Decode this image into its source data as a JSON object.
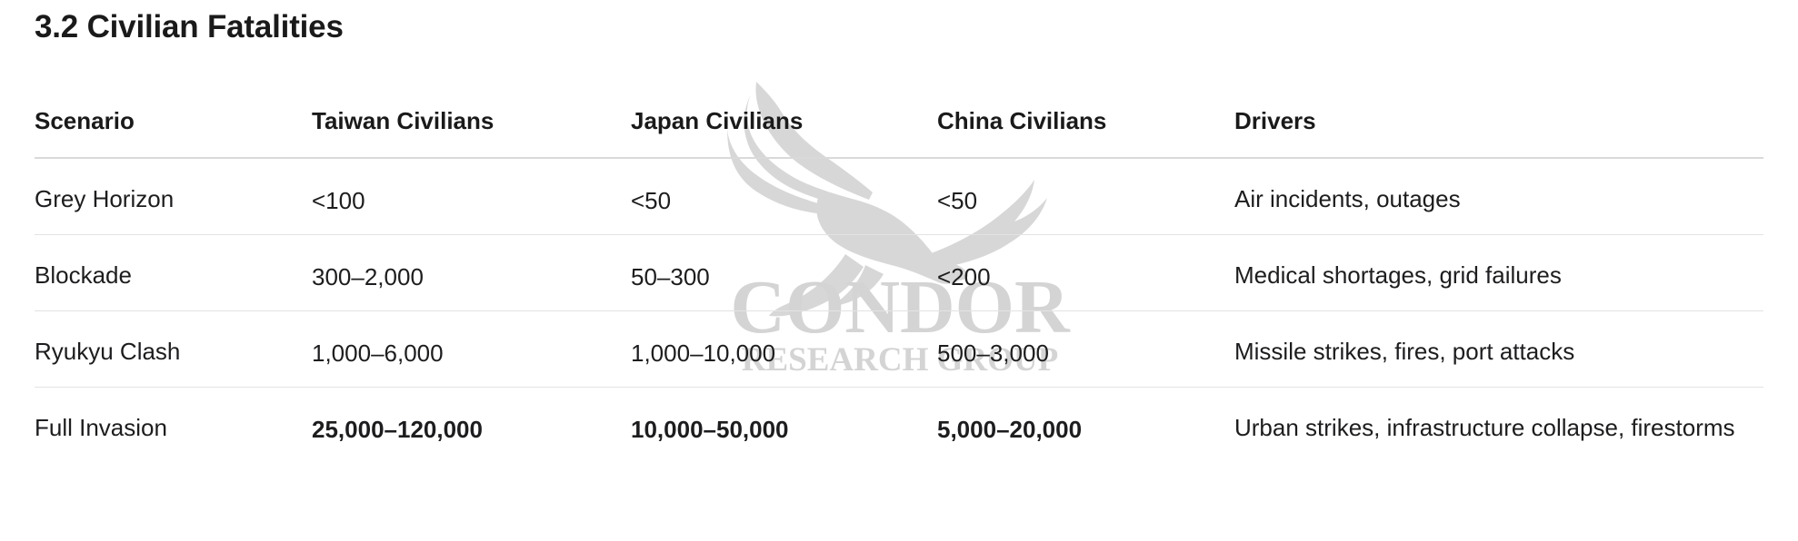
{
  "section": {
    "title": "3.2 Civilian Fatalities"
  },
  "watermark": {
    "line1": "CONDOR",
    "line2": "RESEARCH GROUP",
    "icon": "eagle-icon"
  },
  "table": {
    "headers": [
      "Scenario",
      "Taiwan Civilians",
      "Japan Civilians",
      "China Civilians",
      "Drivers"
    ],
    "rows": [
      {
        "scenario": "Grey Horizon",
        "taiwan": "<100",
        "japan": "<50",
        "china": "<50",
        "drivers": "Air incidents, outages",
        "bold": false
      },
      {
        "scenario": "Blockade",
        "taiwan": "300–2,000",
        "japan": "50–300",
        "china": "<200",
        "drivers": "Medical shortages, grid failures",
        "bold": false
      },
      {
        "scenario": "Ryukyu Clash",
        "taiwan": "1,000–6,000",
        "japan": "1,000–10,000",
        "china": "500–3,000",
        "drivers": "Missile strikes, fires, port attacks",
        "bold": false
      },
      {
        "scenario": "Full Invasion",
        "taiwan": "25,000–120,000",
        "japan": "10,000–50,000",
        "china": "5,000–20,000",
        "drivers": "Urban strikes, infrastructure collapse, firestorms",
        "bold": true
      }
    ]
  },
  "colors": {
    "text": "#1d1d1f",
    "divider": "#e3e3e3",
    "watermark": "#d4d4d4"
  }
}
